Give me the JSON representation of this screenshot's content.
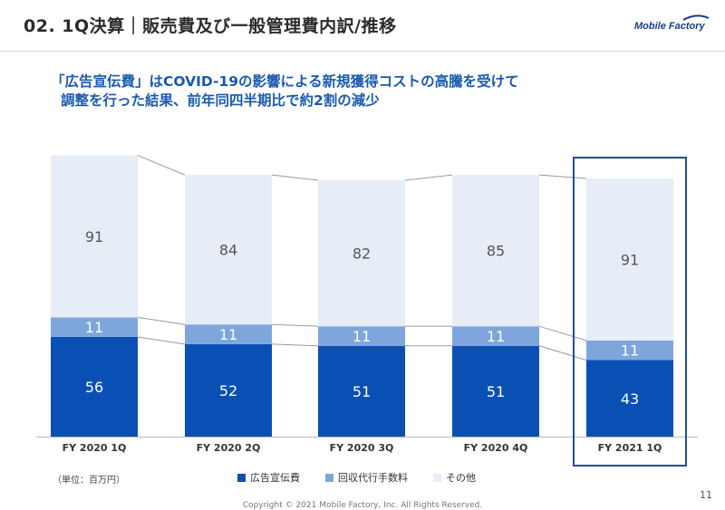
{
  "header": {
    "title": "02. 1Q決算｜販売費及び一般管理費内訳/推移",
    "logo_text": "Mobile Factory"
  },
  "headline": {
    "line1": "「広告宣伝費」はCOVID-19の影響による新規獲得コストの高騰を受けて",
    "line2": "調整を行った結果、前年同四半期比で約2割の減少"
  },
  "chart_data": {
    "type": "bar",
    "stacked": true,
    "categories": [
      "FY 2020 1Q",
      "FY 2020 2Q",
      "FY 2020 3Q",
      "FY 2020 4Q",
      "FY 2021 1Q"
    ],
    "series": [
      {
        "name": "広告宣伝費",
        "values": [
          56,
          52,
          51,
          51,
          43
        ],
        "color": "#0a4fb4",
        "label_color": "#ffffff"
      },
      {
        "name": "回収代行手数料",
        "values": [
          11,
          11,
          11,
          11,
          11
        ],
        "color": "#7ea6dc",
        "label_color": "#ffffff"
      },
      {
        "name": "その他",
        "values": [
          91,
          84,
          82,
          85,
          91
        ],
        "color": "#e6edf7",
        "label_color": "#555555"
      }
    ],
    "highlight_category": "FY 2021 1Q",
    "highlight_color": "#1f4ea3",
    "legend_position": "bottom",
    "grid": false
  },
  "unit_note": "（単位：百万円）",
  "footer": {
    "copyright": "Copyright © 2021 Mobile Factory, Inc. All Rights Reserved.",
    "page_number": "11"
  }
}
